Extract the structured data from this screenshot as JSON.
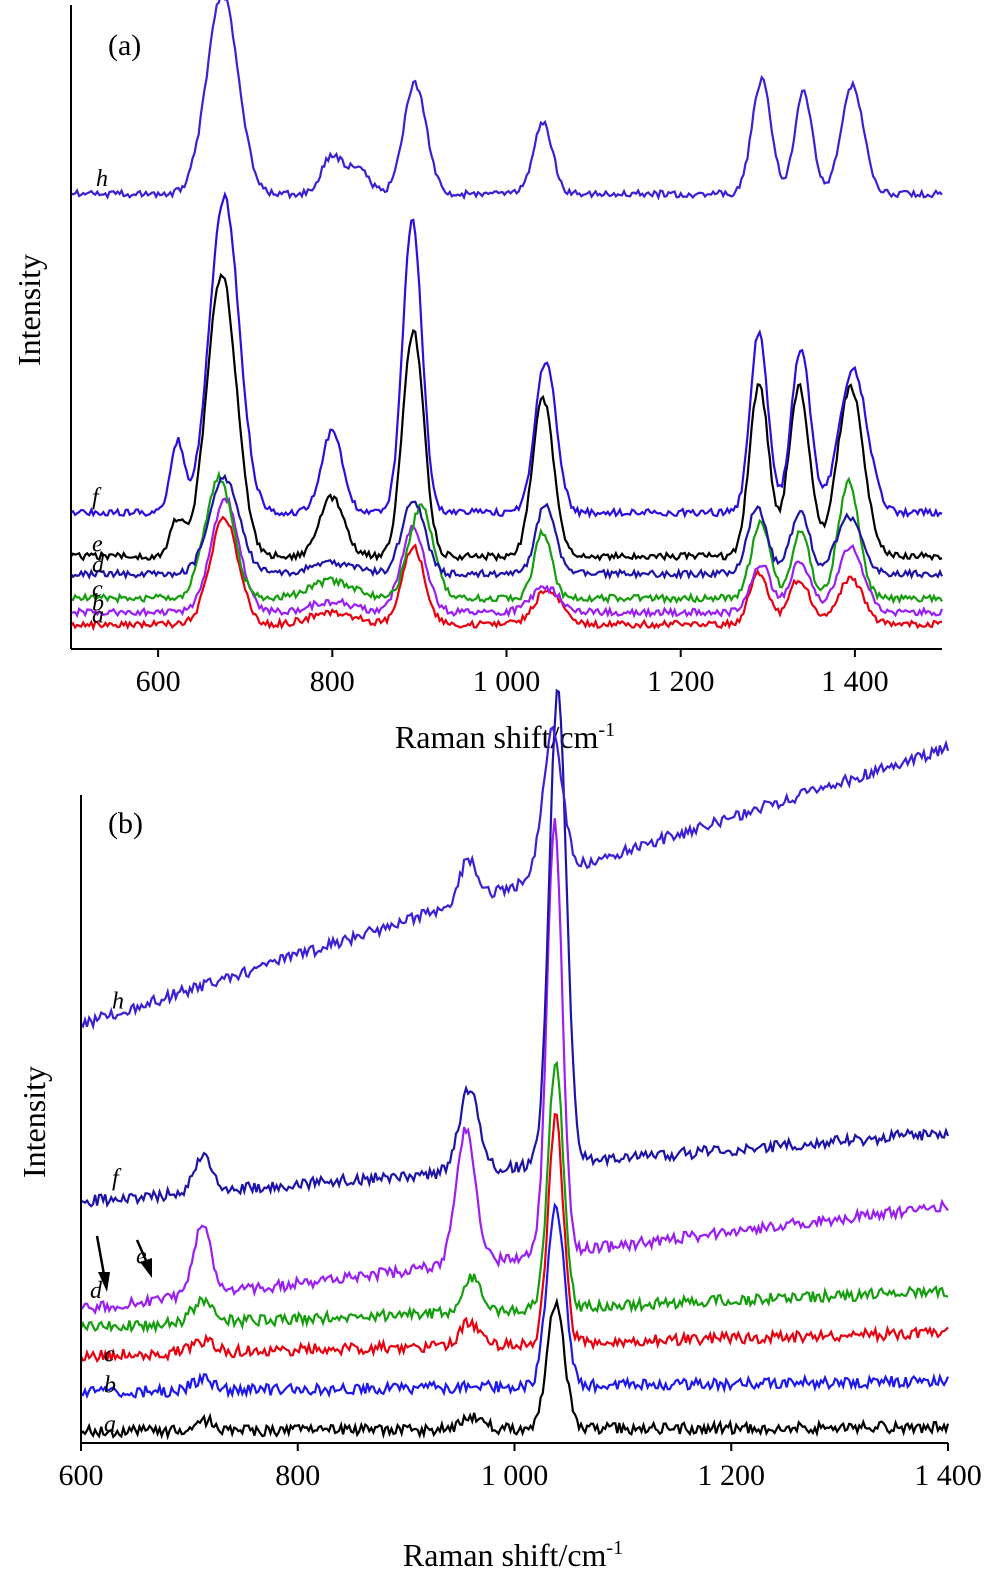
{
  "chart_data": [
    {
      "type": "line",
      "panel_label": "(a)",
      "xlabel": "Raman shift/cm",
      "xlabel_sup": "-1",
      "ylabel": "Intensity",
      "xlim": [
        500,
        1500
      ],
      "xticks": [
        600,
        800,
        1000,
        1200,
        1400
      ],
      "xtick_labels": [
        "600",
        "800",
        "1 000",
        "1 200",
        "1 400"
      ],
      "yticks": "none",
      "legend": "none (curve letters at left)",
      "series": [
        {
          "name": "a",
          "color": "#e8000f",
          "baseline": 0.14,
          "peaks": [
            [
              676,
              0.61,
              16
            ],
            [
              893,
              0.44,
              13
            ],
            [
              1048,
              0.2,
              16
            ],
            [
              1290,
              0.29,
              11
            ],
            [
              1336,
              0.26,
              12
            ],
            [
              1395,
              0.26,
              15
            ],
            [
              800,
              0.07,
              25
            ]
          ]
        },
        {
          "name": "b",
          "color": "#9b1ff2",
          "baseline": 0.21,
          "peaks": [
            [
              677,
              0.65,
              16
            ],
            [
              893,
              0.48,
              14
            ],
            [
              1045,
              0.14,
              16
            ],
            [
              1292,
              0.28,
              11
            ],
            [
              1337,
              0.29,
              12
            ],
            [
              1395,
              0.37,
              15
            ],
            [
              800,
              0.06,
              25
            ]
          ]
        },
        {
          "name": "c",
          "color": "#179e0f",
          "baseline": 0.29,
          "peaks": [
            [
              670,
              0.69,
              16
            ],
            [
              902,
              0.52,
              14
            ],
            [
              1042,
              0.38,
              10
            ],
            [
              1292,
              0.43,
              11
            ],
            [
              1338,
              0.38,
              10
            ],
            [
              1393,
              0.67,
              12
            ],
            [
              800,
              0.1,
              25
            ]
          ]
        },
        {
          "name": "d",
          "color": "#1f14a8",
          "baseline": 0.43,
          "peaks": [
            [
              676,
              0.55,
              17
            ],
            [
              893,
              0.42,
              13
            ],
            [
              1045,
              0.4,
              11
            ],
            [
              1288,
              0.38,
              11
            ],
            [
              1337,
              0.35,
              11
            ],
            [
              1393,
              0.33,
              14
            ],
            [
              800,
              0.06,
              25
            ]
          ]
        },
        {
          "name": "e",
          "color": "#000000",
          "baseline": 0.53,
          "peaks": [
            [
              673,
              1.61,
              17
            ],
            [
              893,
              1.29,
              12
            ],
            [
              1042,
              0.9,
              12
            ],
            [
              1290,
              0.98,
              11
            ],
            [
              1336,
              0.97,
              12
            ],
            [
              1395,
              0.97,
              15
            ],
            [
              800,
              0.34,
              14
            ],
            [
              622,
              0.2,
              8
            ]
          ]
        },
        {
          "name": "f",
          "color": "#2b0ee0",
          "baseline": 0.78,
          "peaks": [
            [
              676,
              1.8,
              17
            ],
            [
              892,
              1.67,
              11
            ],
            [
              1045,
              0.87,
              12
            ],
            [
              1290,
              1.04,
              10
            ],
            [
              1338,
              0.94,
              11
            ],
            [
              1398,
              0.82,
              16
            ],
            [
              800,
              0.47,
              12
            ],
            [
              622,
              0.4,
              8
            ]
          ]
        },
        {
          "name": "h",
          "color": "#3e1fd6",
          "baseline": 0.52,
          "peaks": [
            [
              674,
              1.14,
              18
            ],
            [
              895,
              0.63,
              13
            ],
            [
              1042,
              0.4,
              11
            ],
            [
              1293,
              0.65,
              11
            ],
            [
              1341,
              0.59,
              10
            ],
            [
              1397,
              0.62,
              13
            ],
            [
              800,
              0.22,
              12
            ],
            [
              830,
              0.15,
              12
            ]
          ],
          "offset": 2.08
        }
      ]
    },
    {
      "type": "line",
      "panel_label": "(b)",
      "xlabel": "Raman shift/cm",
      "xlabel_sup": "-1",
      "ylabel": "Intensity",
      "xlim": [
        600,
        1400
      ],
      "xticks": [
        600,
        800,
        1000,
        1200,
        1400
      ],
      "xtick_labels": [
        "600",
        "800",
        "1 000",
        "1 200",
        "1 400"
      ],
      "yticks": "none",
      "legend": "none (curve letters at left; arrows mark d and e)",
      "series": [
        {
          "name": "a",
          "color": "#000000",
          "baseline": 0.05,
          "slope": 0.02,
          "peaks": [
            [
              1038,
              0.55,
              8
            ],
            [
              962,
              0.05,
              10
            ],
            [
              712,
              0.05,
              10
            ]
          ]
        },
        {
          "name": "b",
          "color": "#1d18ee",
          "baseline": 0.22,
          "slope": 0.05,
          "peaks": [
            [
              1038,
              0.79,
              8
            ],
            [
              712,
              0.05,
              10
            ]
          ]
        },
        {
          "name": "c",
          "color": "#e8000f",
          "baseline": 0.38,
          "slope": 0.1,
          "peaks": [
            [
              1038,
              0.98,
              7
            ],
            [
              958,
              0.1,
              8
            ],
            [
              712,
              0.05,
              10
            ]
          ]
        },
        {
          "name": "d",
          "color": "#179e0f",
          "baseline": 0.5,
          "slope": 0.16,
          "peaks": [
            [
              1038,
              1.07,
              7
            ],
            [
              962,
              0.15,
              8
            ],
            [
              712,
              0.09,
              10
            ]
          ]
        },
        {
          "name": "e",
          "color": "#9b1ff2",
          "baseline": 0.58,
          "slope": 0.45,
          "peaks": [
            [
              1037,
              1.88,
              7
            ],
            [
              955,
              0.58,
              9
            ],
            [
              712,
              0.3,
              8
            ]
          ]
        },
        {
          "name": "f",
          "color": "#1f14a8",
          "baseline": 1.05,
          "slope": 0.3,
          "peaks": [
            [
              1040,
              2.05,
              8
            ],
            [
              958,
              0.35,
              9
            ],
            [
              712,
              0.16,
              8
            ]
          ]
        },
        {
          "name": "h",
          "color": "#3e1fd6",
          "baseline": 1.82,
          "slope": 1.2,
          "peaks": [
            [
              1035,
              0.62,
              9
            ],
            [
              957,
              0.18,
              8
            ]
          ]
        }
      ]
    }
  ]
}
